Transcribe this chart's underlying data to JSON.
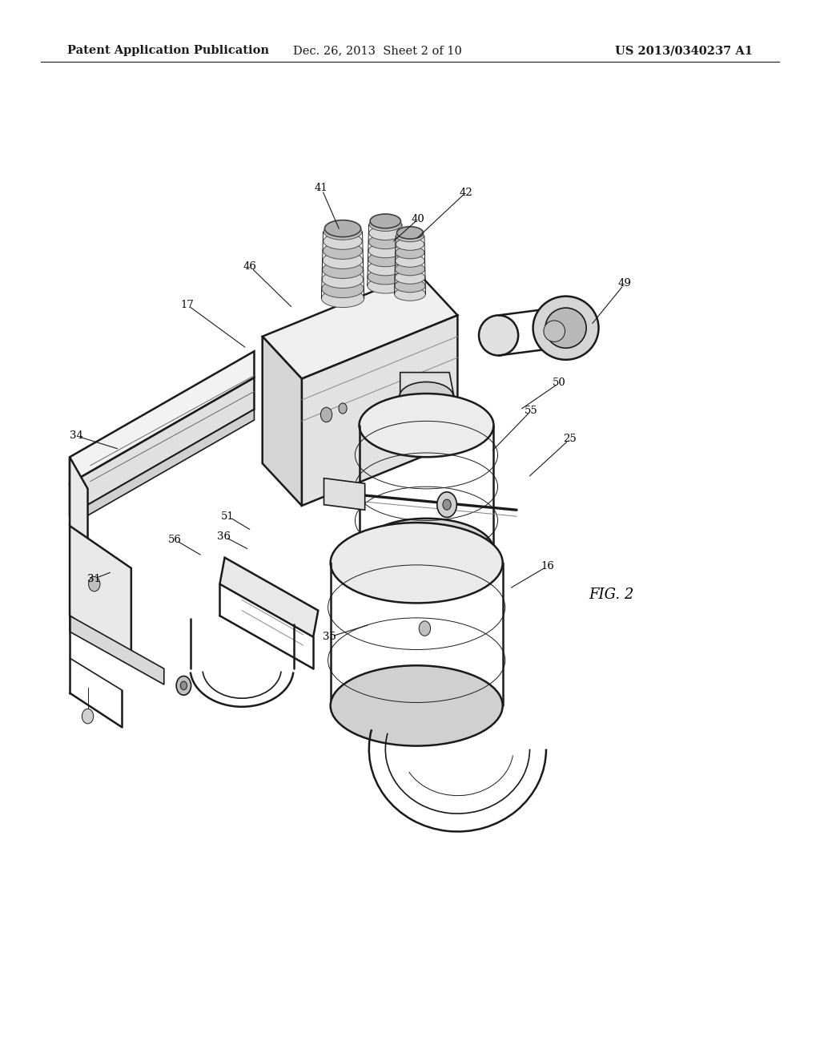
{
  "header_left": "Patent Application Publication",
  "header_center": "Dec. 26, 2013  Sheet 2 of 10",
  "header_right": "US 2013/0340237 A1",
  "figure_label": "FIG. 2",
  "background_color": "#ffffff",
  "line_color": "#1a1a1a",
  "header_fontsize": 10.5,
  "fig_label_fontsize": 13,
  "ref_fontsize": 9.5
}
